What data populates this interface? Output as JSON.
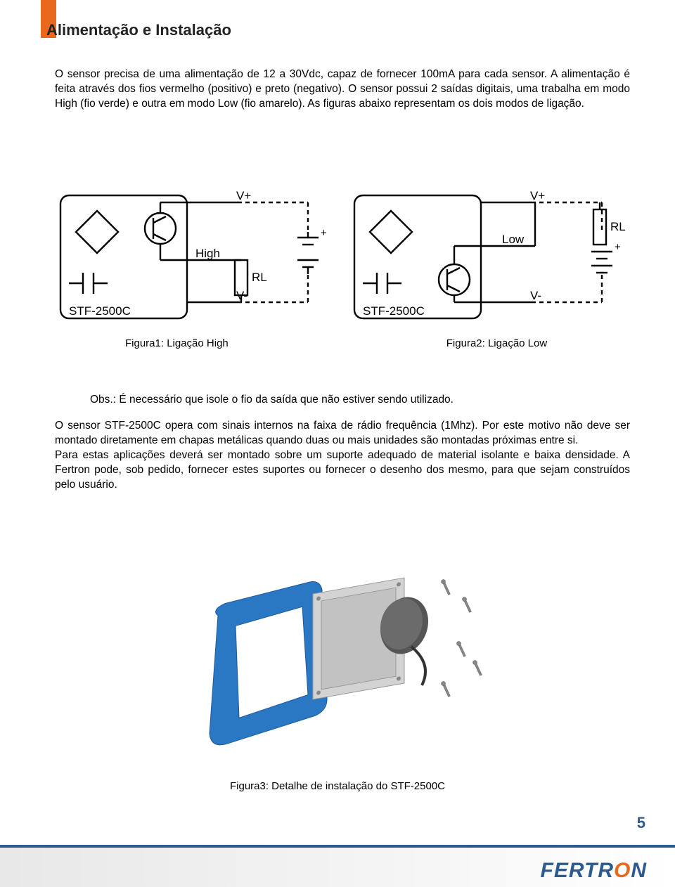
{
  "colors": {
    "accent_orange": "#e8691e",
    "brand_blue": "#2d5a8f",
    "text": "#000000",
    "bg": "#ffffff",
    "footer_border": "#2d5a8f",
    "diagram_stroke": "#000000"
  },
  "page_number": "5",
  "section_title": "Alimentação e Instalação",
  "intro_paragraph": "O sensor precisa de uma alimentação de 12 a 30Vdc, capaz de fornecer 100mA para cada sensor. A alimentação é feita através dos fios vermelho (positivo) e preto (negativo). O sensor possui 2 saídas digitais, uma trabalha em modo High (fio verde) e outra em modo Low (fio amarelo). As figuras abaixo representam os dois modos de ligação.",
  "diagram_left": {
    "type": "circuit",
    "device_label": "STF-2500C",
    "top_wire_label": "V+",
    "bottom_wire_label": "V-",
    "output_label": "High",
    "load_label": "RL",
    "transistor_symbol": "K",
    "caption": "Figura1: Ligação High",
    "linewidth": 2.4
  },
  "diagram_right": {
    "type": "circuit",
    "device_label": "STF-2500C",
    "top_wire_label": "V+",
    "bottom_wire_label": "V-",
    "output_label": "Low",
    "load_label": "RL",
    "transistor_symbol": "K",
    "caption": "Figura2: Ligação Low",
    "linewidth": 2.4
  },
  "obs_line": "Obs.: É necessário que isole o fio da saída que não estiver sendo utilizado.",
  "body_paragraph": "O sensor STF-2500C opera com sinais internos na faixa de rádio frequência (1Mhz). Por este motivo não deve ser montado diretamente em chapas metálicas quando duas ou mais unidades são montadas próximas entre si.\nPara estas aplicações deverá ser montado sobre um suporte adequado de material isolante e baixa densidade. A Fertron pode, sob pedido, fornecer estes suportes ou fornecer o desenho dos mesmo, para que sejam construídos pelo usuário.",
  "figure3": {
    "caption": "Figura3: Detalhe de instalação do STF-2500C",
    "description": "3D exploded view: blue gasket frame, grey sensor plate, dark round puck, mounting screws",
    "colors": {
      "gasket": "#2a78c4",
      "plate": "#c9c9c9",
      "puck": "#6b6b6b",
      "screw": "#888888"
    }
  },
  "footer_logo_text": "FERTRON"
}
